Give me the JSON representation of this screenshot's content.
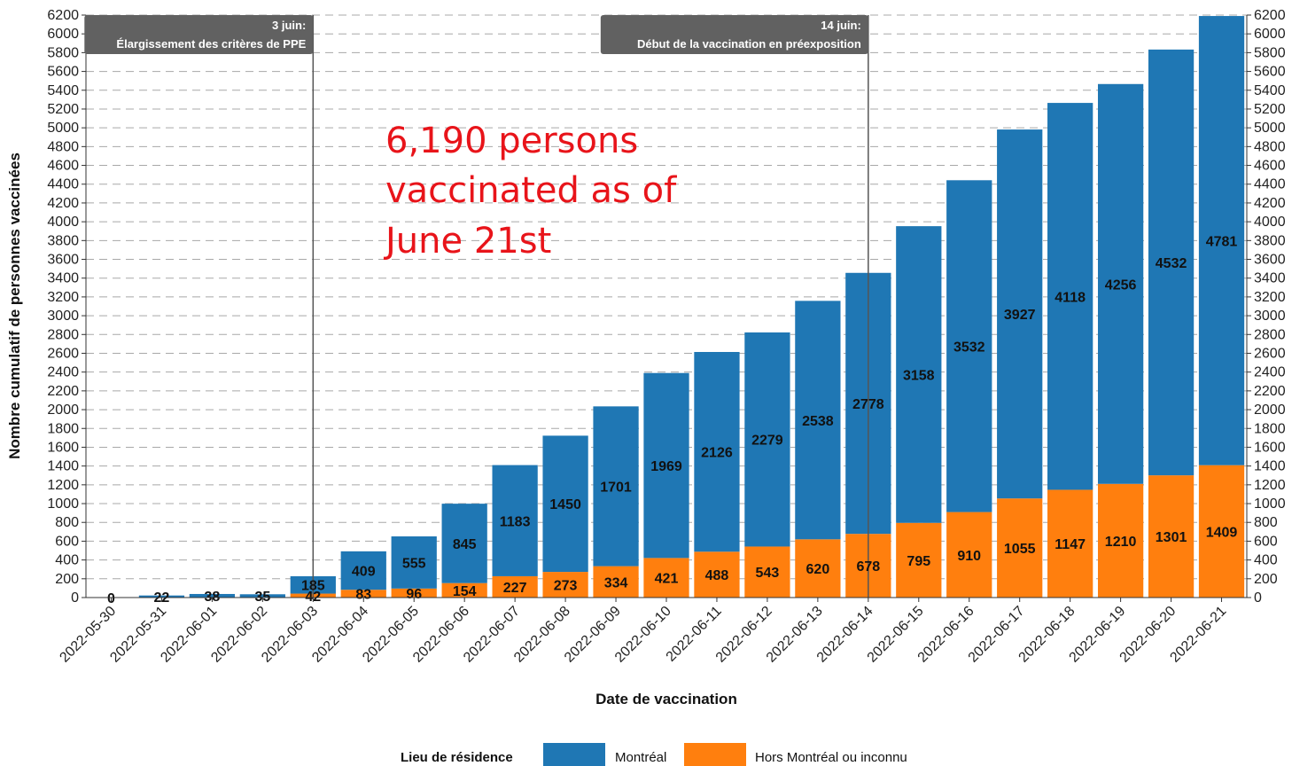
{
  "chart_data": {
    "type": "bar",
    "stacked": true,
    "categories": [
      "2022-05-30",
      "2022-05-31",
      "2022-06-01",
      "2022-06-02",
      "2022-06-03",
      "2022-06-04",
      "2022-06-05",
      "2022-06-06",
      "2022-06-07",
      "2022-06-08",
      "2022-06-09",
      "2022-06-10",
      "2022-06-11",
      "2022-06-12",
      "2022-06-13",
      "2022-06-14",
      "2022-06-15",
      "2022-06-16",
      "2022-06-17",
      "2022-06-18",
      "2022-06-19",
      "2022-06-20",
      "2022-06-21"
    ],
    "series": [
      {
        "name": "Hors Montréal ou inconnu",
        "color": "#ff7f0e",
        "values": [
          0,
          0,
          0,
          0,
          42,
          83,
          96,
          154,
          227,
          273,
          334,
          421,
          488,
          543,
          620,
          678,
          795,
          910,
          1055,
          1147,
          1210,
          1301,
          1409
        ],
        "labels": [
          "",
          "",
          "",
          "",
          "42",
          "83",
          "96",
          "154",
          "227",
          "273",
          "334",
          "421",
          "488",
          "543",
          "620",
          "678",
          "795",
          "910",
          "1055",
          "1147",
          "1210",
          "1301",
          "1409"
        ]
      },
      {
        "name": "Montréal",
        "color": "#1f77b4",
        "values": [
          0,
          22,
          38,
          35,
          185,
          409,
          555,
          845,
          1183,
          1450,
          1701,
          1969,
          2126,
          2279,
          2538,
          2778,
          3158,
          3532,
          3927,
          4118,
          4256,
          4532,
          4781
        ],
        "labels": [
          "0",
          "22",
          "38",
          "35",
          "185",
          "409",
          "555",
          "845",
          "1183",
          "1450",
          "1701",
          "1969",
          "2126",
          "2279",
          "2538",
          "2778",
          "3158",
          "3532",
          "3927",
          "4118",
          "4256",
          "4532",
          "4781"
        ]
      }
    ],
    "ylim": [
      0,
      6200
    ],
    "yticks": [
      0,
      200,
      400,
      600,
      800,
      1000,
      1200,
      1400,
      1600,
      1800,
      2000,
      2200,
      2400,
      2600,
      2800,
      3000,
      3200,
      3400,
      3600,
      3800,
      4000,
      4200,
      4400,
      4600,
      4800,
      5000,
      5200,
      5400,
      5600,
      5800,
      6000,
      6200
    ],
    "grid": "horizontal dashed",
    "xlabel": "Date de vaccination",
    "ylabel": "Nombre cumulatif de personnes vaccinées",
    "annotations": [
      {
        "category": "2022-06-03",
        "line1": "3 juin:",
        "line2": "Élargissement des critères de PPE"
      },
      {
        "category": "2022-06-14",
        "line1": "14 juin:",
        "line2": "Début de la vaccination en préexposition"
      }
    ],
    "legend": {
      "title": "Lieu de résidence",
      "position": "bottom",
      "items": [
        "Montréal",
        "Hors Montréal ou inconnu"
      ]
    }
  },
  "overlay_text": [
    "6,190 persons",
    "vaccinated as of",
    "June 21st"
  ]
}
